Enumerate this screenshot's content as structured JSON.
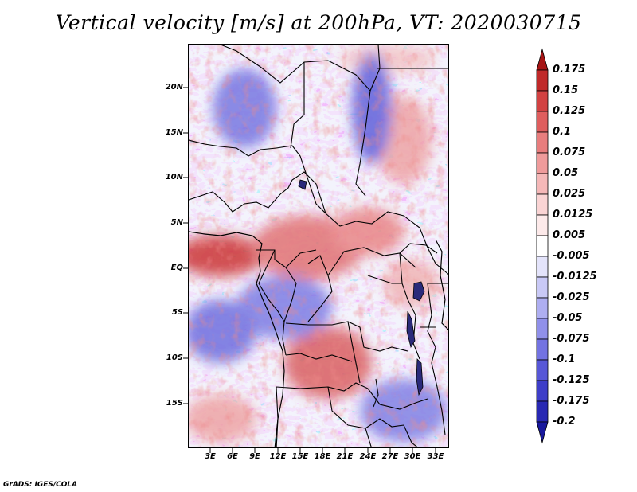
{
  "title": "Vertical velocity [m/s] at 200hPa, VT: 2020030715",
  "map": {
    "lat_labels": [
      "20N",
      "15N",
      "10N",
      "5N",
      "EQ",
      "5S",
      "10S",
      "15S"
    ],
    "lon_labels": [
      "3E",
      "6E",
      "9E",
      "12E",
      "15E",
      "18E",
      "21E",
      "24E",
      "27E",
      "30E",
      "33E"
    ]
  },
  "colorbar": {
    "labels": [
      "0.175",
      "0.15",
      "0.125",
      "0.1",
      "0.075",
      "0.05",
      "0.025",
      "0.0125",
      "0.005",
      "-0.005",
      "-0.0125",
      "-0.025",
      "-0.05",
      "-0.075",
      "-0.1",
      "-0.125",
      "-0.175",
      "-0.2"
    ],
    "colors": [
      "#a61515",
      "#c02a2a",
      "#d24242",
      "#df5e5e",
      "#e87d7d",
      "#ef9b9b",
      "#f5b8b8",
      "#fad4d4",
      "#fdeaea",
      "#ffffff",
      "#e4e4fb",
      "#c9c9f6",
      "#aeaef1",
      "#9090ea",
      "#7373e2",
      "#5757d7",
      "#3e3ec8",
      "#2828b3",
      "#18189c"
    ]
  },
  "credit": "GrADS: IGES/COLA"
}
